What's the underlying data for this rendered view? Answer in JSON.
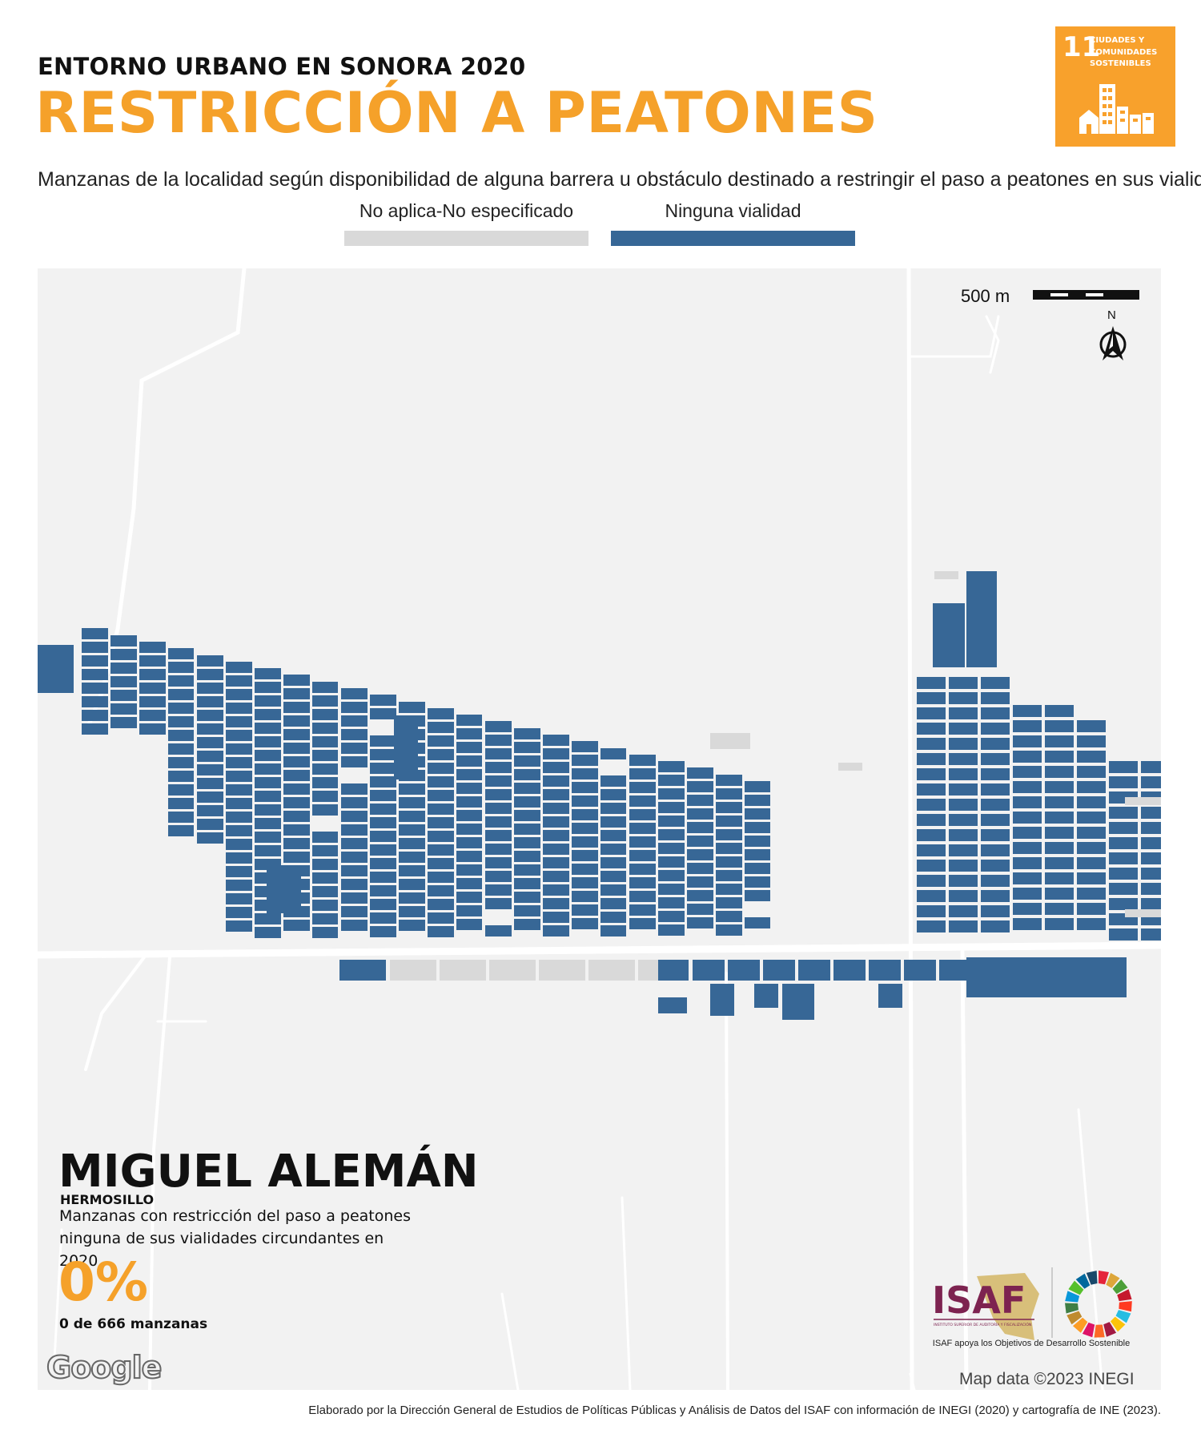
{
  "header": {
    "supertitle": "ENTORNO URBANO EN SONORA 2020",
    "title": "RESTRICCIÓN A PEATONES",
    "subtitle": "Manzanas de la localidad según disponibilidad de alguna barrera u obstáculo destinado a restringir el paso a peatones en sus vialidades."
  },
  "sdg": {
    "number": "11",
    "label": "CIUDADES Y COMUNIDADES SOSTENIBLES",
    "color": "#f8a12c"
  },
  "legend": {
    "items": [
      {
        "label": "No aplica-No especificado",
        "color": "#d9d9d9"
      },
      {
        "label": "Ninguna vialidad",
        "color": "#376796"
      }
    ]
  },
  "map": {
    "scale_label": "500 m",
    "north_label": "N",
    "background_color": "#f2f2f2",
    "road_color": "#ffffff"
  },
  "locality": {
    "name": "MIGUEL ALEMÁN",
    "municipality": "HERMOSILLO",
    "description": "Manzanas con restricción del paso a peatones ninguna de sus vialidades circundantes en 2020.",
    "percent": "0%",
    "count_text": "0 de 666 manzanas"
  },
  "branding": {
    "google": "Google",
    "map_attribution": "Map data ©2023 INEGI",
    "isaf_logo": "ISAF",
    "isaf_logo_subtext": "INSTITUTO SUPERIOR DE AUDITORÍA Y FISCALIZACIÓN",
    "isaf_caption": "ISAF apoya los Objetivos de Desarrollo Sostenible"
  },
  "footer": "Elaborado por la Dirección General de Estudios de Políticas Públicas y Análisis de Datos del ISAF con información de INEGI (2020) y cartografía de INE (2023)."
}
